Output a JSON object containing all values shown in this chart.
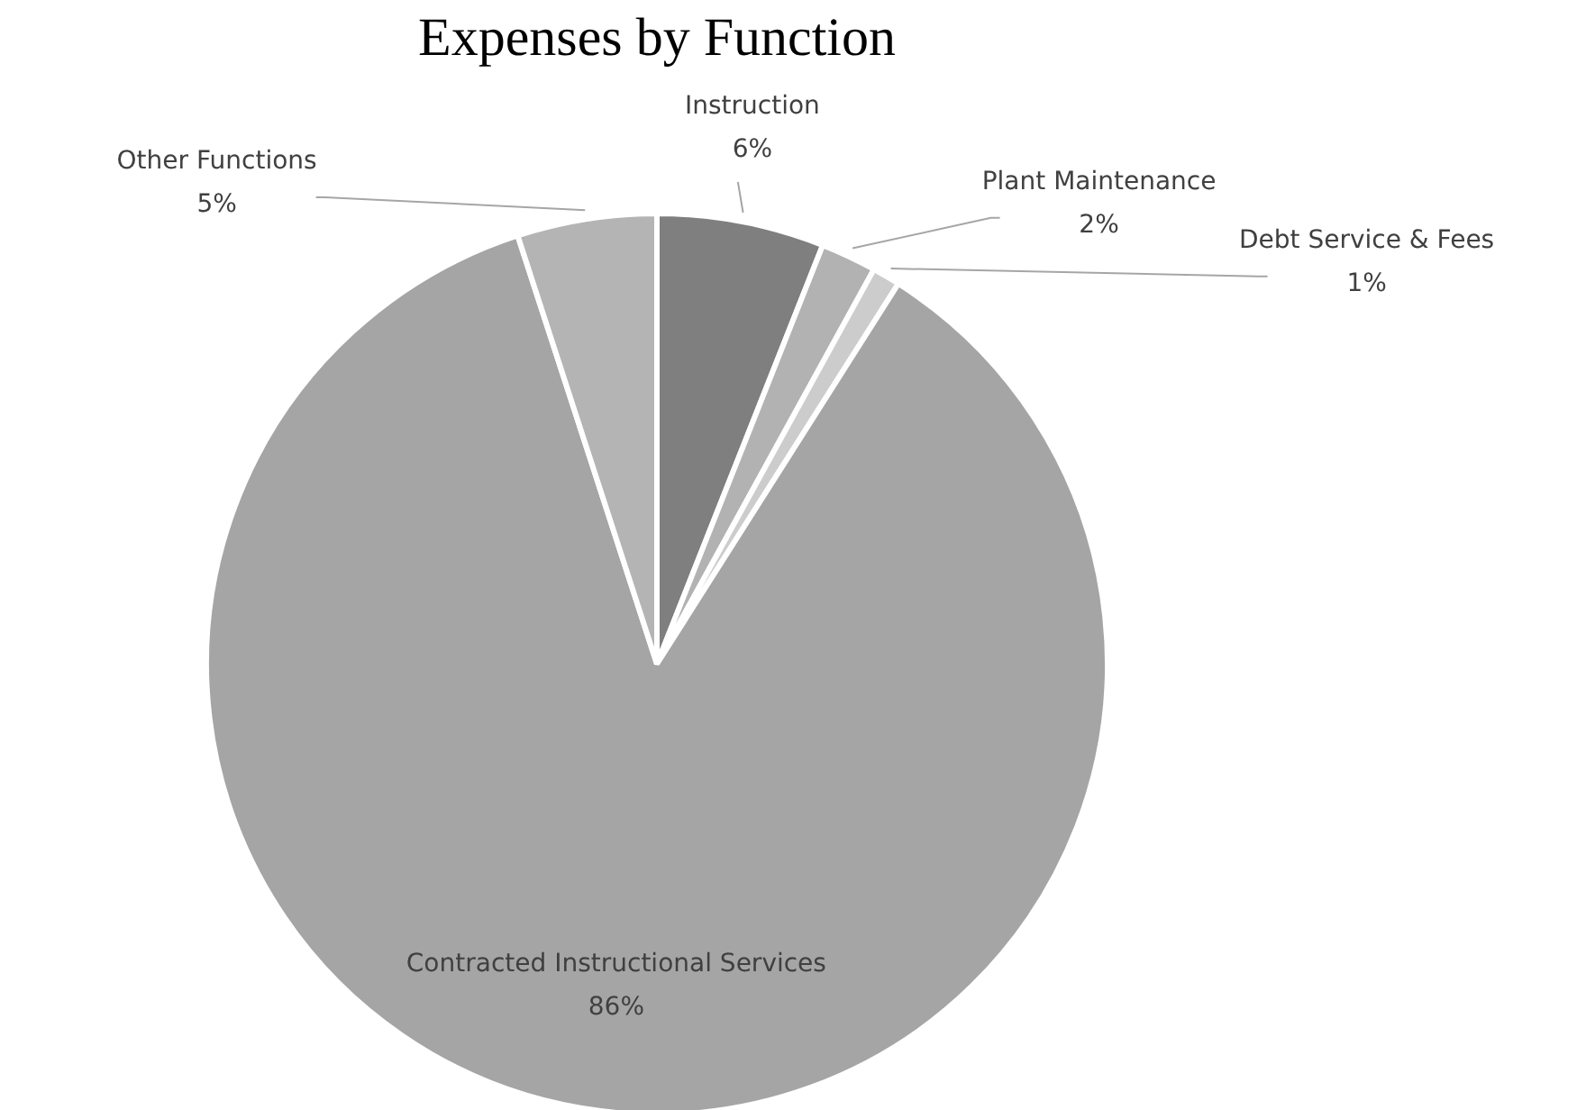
{
  "chart_data": {
    "type": "pie",
    "title": "Expenses by Function",
    "categories": [
      "Instruction",
      "Plant Maintenance",
      "Debt Service & Fees",
      "Contracted Instructional Services",
      "Other Functions"
    ],
    "values": [
      6,
      2,
      1,
      86,
      5
    ],
    "value_labels": [
      "6%",
      "2%",
      "1%",
      "86%",
      "5%"
    ],
    "colors": [
      "#7f7f7f",
      "#b2b2b2",
      "#cccccc",
      "#a5a5a5",
      "#b4b4b4"
    ]
  }
}
